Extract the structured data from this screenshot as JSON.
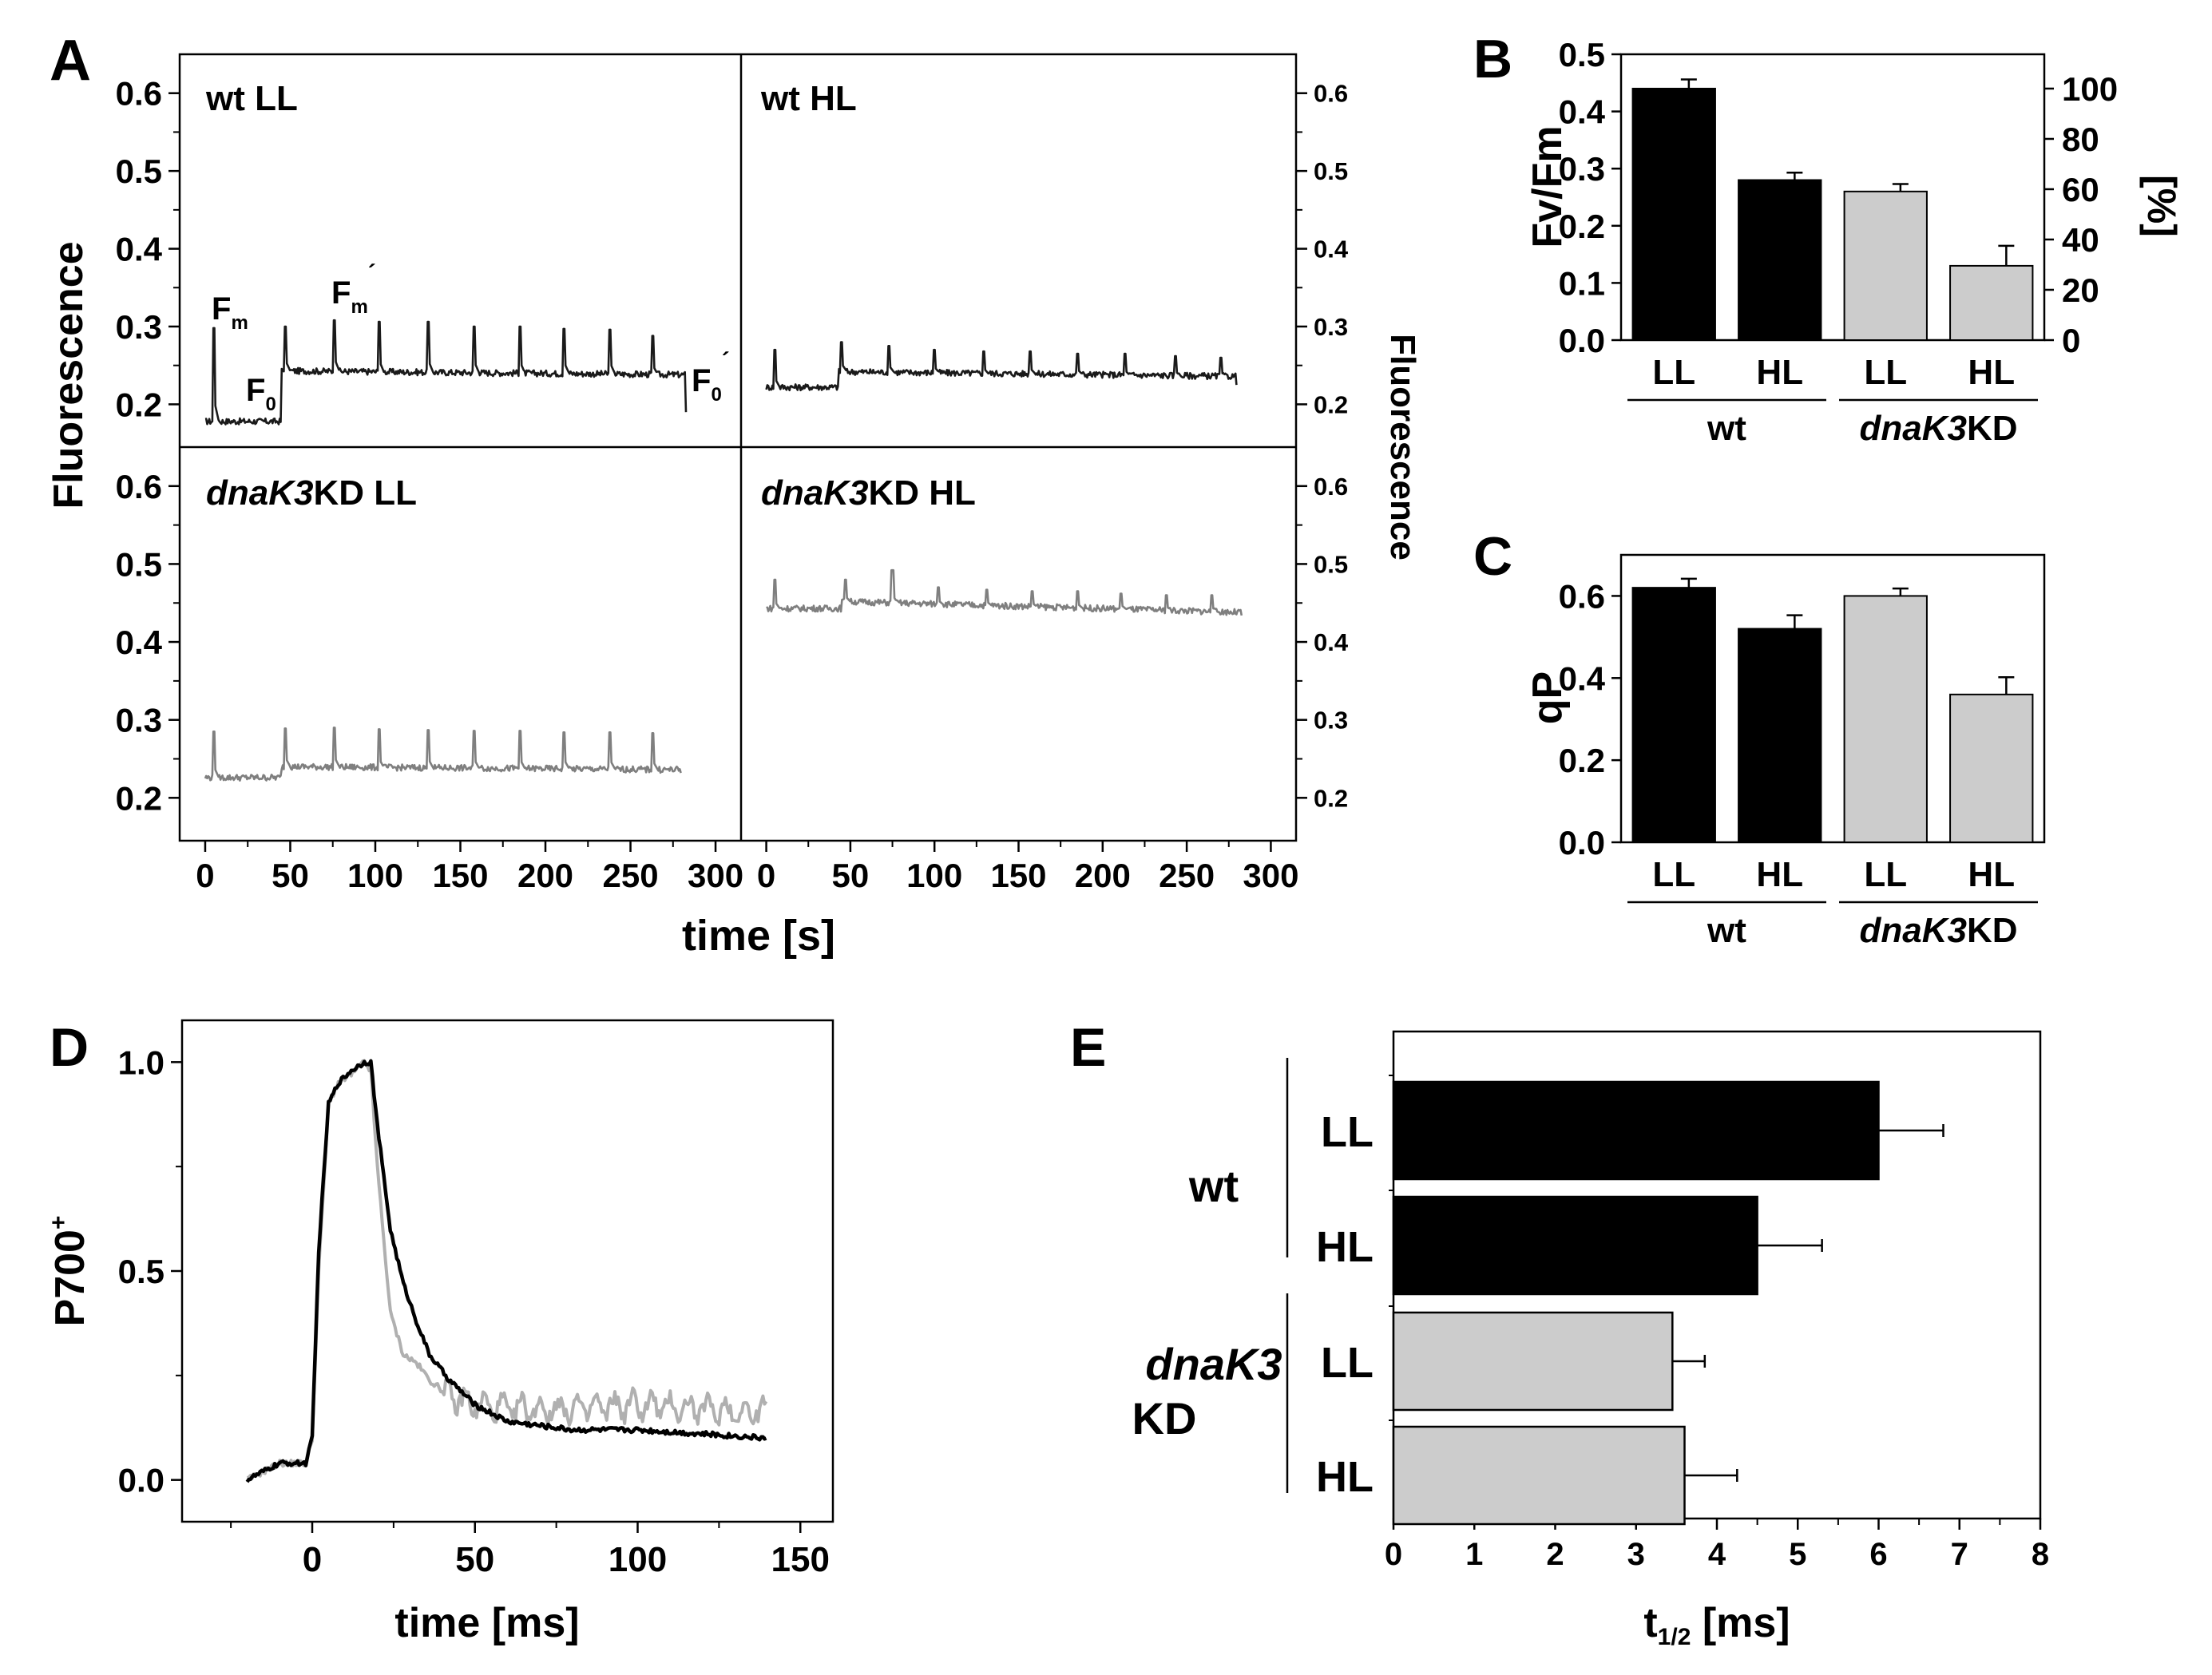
{
  "figure": {
    "panel_labels": {
      "A": "A",
      "B": "B",
      "C": "C",
      "D": "D",
      "E": "E"
    }
  },
  "chart_data": [
    {
      "id": "A",
      "type": "line",
      "ylabel_left": "Fluorescence",
      "ylabel_right": "Fluorescence",
      "xlabel": "time [s]",
      "xlim": [
        -15,
        315
      ],
      "ylim": [
        0.145,
        0.65
      ],
      "xticks": [
        0,
        50,
        100,
        150,
        200,
        250,
        300
      ],
      "xtick_labels": [
        "0",
        "50",
        "100",
        "150",
        "200",
        "250",
        "300"
      ],
      "yticks": [
        0.2,
        0.3,
        0.4,
        0.5,
        0.6
      ],
      "ytick_labels": [
        "0.2",
        "0.3",
        "0.4",
        "0.5",
        "0.6"
      ],
      "annotations": {
        "fm": "F",
        "fm_sub": "m",
        "f0": "F",
        "f0_sub": "0",
        "fm_prime": "F",
        "fm_prime_sub": "m",
        "fm_prime_mark": "´",
        "f0_prime": "F",
        "f0_prime_sub": "0",
        "f0_prime_mark": "´"
      },
      "series": [
        {
          "name": "wt LL",
          "title_italic": "",
          "title_rest": "wt LL",
          "color": "#1a1a1a",
          "dark_baseline": 0.178,
          "light_level": 0.243,
          "light_level_end": 0.238,
          "light_on_s": 45,
          "end_s": 283,
          "pulse_times_s": [
            5,
            47,
            76,
            102,
            131,
            158,
            185,
            211,
            238,
            263
          ],
          "pulse_peaks": [
            0.298,
            0.3,
            0.308,
            0.306,
            0.306,
            0.3,
            0.3,
            0.297,
            0.296,
            0.288
          ],
          "final_drop": 0.19
        },
        {
          "name": "wt HL",
          "title_italic": "",
          "title_rest": "wt HL",
          "color": "#1a1a1a",
          "dark_baseline": 0.222,
          "light_level": 0.242,
          "light_level_end": 0.236,
          "light_on_s": 43,
          "end_s": 280,
          "pulse_times_s": [
            5,
            45,
            73,
            100,
            129,
            157,
            185,
            213,
            243,
            270
          ],
          "pulse_peaks": [
            0.27,
            0.28,
            0.275,
            0.27,
            0.268,
            0.268,
            0.265,
            0.265,
            0.262,
            0.26
          ],
          "final_drop": 0.225
        },
        {
          "name": "dnaK3KD LL",
          "title_italic": "dnaK3",
          "title_rest": "KD LL",
          "color": "#7f7f7f",
          "dark_baseline": 0.226,
          "light_level": 0.24,
          "light_level_end": 0.236,
          "light_on_s": 45,
          "end_s": 280,
          "pulse_times_s": [
            5,
            47,
            76,
            102,
            131,
            158,
            185,
            211,
            238,
            263
          ],
          "pulse_peaks": [
            0.285,
            0.289,
            0.29,
            0.288,
            0.287,
            0.286,
            0.286,
            0.284,
            0.284,
            0.283
          ],
          "final_drop": 0.232
        },
        {
          "name": "dnaK3KD HL",
          "title_italic": "dnaK3",
          "title_rest": "KD HL",
          "color": "#7f7f7f",
          "dark_baseline": 0.443,
          "light_level": 0.452,
          "light_level_end": 0.438,
          "light_on_s": 45,
          "end_s": 283,
          "pulse_times_s": [
            5,
            47,
            75,
            102,
            131,
            158,
            185,
            211,
            238,
            265
          ],
          "pulse_peaks": [
            0.48,
            0.48,
            0.492,
            0.47,
            0.467,
            0.465,
            0.465,
            0.462,
            0.46,
            0.46
          ],
          "final_drop": 0.434
        }
      ]
    },
    {
      "id": "B",
      "type": "bar",
      "ylabel": "Fv/Fm",
      "ylabel_right": "[%]",
      "ylim": [
        0,
        0.5
      ],
      "yticks": [
        0.0,
        0.1,
        0.2,
        0.3,
        0.4,
        0.5
      ],
      "ytick_labels": [
        "0.0",
        "0.1",
        "0.2",
        "0.3",
        "0.4",
        "0.5"
      ],
      "yticks_right": [
        0,
        20,
        40,
        60,
        80,
        100
      ],
      "ytick_labels_right": [
        "0",
        "20",
        "40",
        "60",
        "80",
        "100"
      ],
      "categories": [
        "LL",
        "HL",
        "LL",
        "HL"
      ],
      "groups": [
        {
          "label": "wt",
          "italic": "",
          "rest": "wt"
        },
        {
          "label": "dnaK3KD",
          "italic": "dnaK3",
          "rest": "KD"
        }
      ],
      "values": [
        0.44,
        0.28,
        0.26,
        0.13
      ],
      "errors": [
        0.016,
        0.013,
        0.013,
        0.035
      ],
      "colors": [
        "#000000",
        "#000000",
        "#cccccc",
        "#cccccc"
      ]
    },
    {
      "id": "C",
      "type": "bar",
      "ylabel": "qP",
      "ylim": [
        0,
        0.7
      ],
      "yticks": [
        0.0,
        0.2,
        0.4,
        0.6
      ],
      "ytick_labels": [
        "0.0",
        "0.2",
        "0.4",
        "0.6"
      ],
      "categories": [
        "LL",
        "HL",
        "LL",
        "HL"
      ],
      "groups": [
        {
          "label": "wt",
          "italic": "",
          "rest": "wt"
        },
        {
          "label": "dnaK3KD",
          "italic": "dnaK3",
          "rest": "KD"
        }
      ],
      "values": [
        0.62,
        0.52,
        0.6,
        0.36
      ],
      "errors": [
        0.022,
        0.033,
        0.018,
        0.042
      ],
      "colors": [
        "#000000",
        "#000000",
        "#cccccc",
        "#cccccc"
      ]
    },
    {
      "id": "D",
      "type": "line",
      "ylabel": "P700",
      "ylabel_sup": "+",
      "xlabel": "time [ms]",
      "xlim": [
        -40,
        160
      ],
      "ylim": [
        -0.1,
        1.1
      ],
      "xticks": [
        0,
        50,
        100,
        150
      ],
      "xtick_labels": [
        "0",
        "50",
        "100",
        "150"
      ],
      "yticks": [
        0.0,
        0.5,
        1.0
      ],
      "ytick_labels": [
        "0.0",
        "0.5",
        "1.0"
      ],
      "series": [
        {
          "name": "dnaK3KD (grey)",
          "color": "#b0b0b0",
          "x": [
            -20,
            -10,
            -2,
            0,
            2,
            5,
            8,
            12,
            16,
            18,
            20,
            24,
            28,
            32,
            36,
            42,
            50,
            60,
            80,
            100,
            120,
            140
          ],
          "y": [
            0.0,
            0.04,
            0.04,
            0.1,
            0.5,
            0.9,
            0.95,
            0.97,
            1.0,
            0.98,
            0.75,
            0.4,
            0.3,
            0.28,
            0.24,
            0.2,
            0.18,
            0.17,
            0.17,
            0.18,
            0.17,
            0.16
          ]
        },
        {
          "name": "wt (black)",
          "color": "#000000",
          "x": [
            -20,
            -10,
            -2,
            0,
            2,
            5,
            8,
            12,
            16,
            18,
            20,
            24,
            28,
            32,
            36,
            42,
            50,
            60,
            80,
            100,
            120,
            140
          ],
          "y": [
            0.0,
            0.04,
            0.04,
            0.1,
            0.55,
            0.9,
            0.95,
            0.98,
            1.0,
            1.0,
            0.85,
            0.6,
            0.47,
            0.38,
            0.3,
            0.24,
            0.18,
            0.14,
            0.12,
            0.12,
            0.11,
            0.1
          ]
        }
      ]
    },
    {
      "id": "E",
      "type": "bar",
      "orientation": "horizontal",
      "xlabel": "t",
      "xlabel_sub": "1/2",
      "xlabel_rest": " [ms]",
      "xlim": [
        0,
        8
      ],
      "xticks": [
        0,
        1,
        2,
        3,
        4,
        5,
        6,
        7,
        8
      ],
      "xtick_labels": [
        "0",
        "1",
        "2",
        "3",
        "4",
        "5",
        "6",
        "7",
        "8"
      ],
      "categories": [
        "LL",
        "HL",
        "LL",
        "HL"
      ],
      "groups": [
        {
          "label": "wt",
          "line1": "wt",
          "line2": ""
        },
        {
          "label": "dnaK3 KD",
          "line1": "dnaK3",
          "line2": "KD"
        }
      ],
      "values": [
        6.0,
        4.5,
        3.45,
        3.6
      ],
      "errors": [
        0.8,
        0.8,
        0.4,
        0.65
      ],
      "colors": [
        "#000000",
        "#000000",
        "#cccccc",
        "#cccccc"
      ]
    }
  ]
}
